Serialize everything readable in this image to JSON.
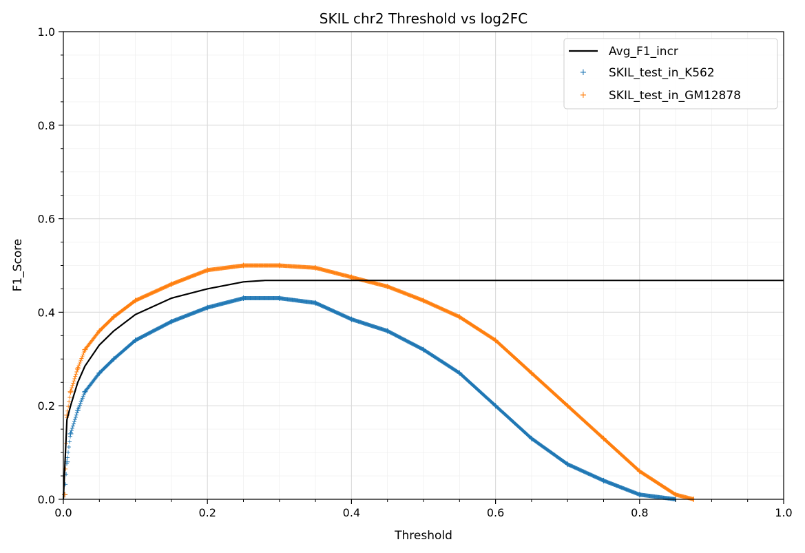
{
  "chart_data": {
    "type": "scatter",
    "title": "SKIL chr2 Threshold vs log2FC",
    "xlabel": "Threshold",
    "ylabel": "F1_Score",
    "xlim": [
      0,
      1.0
    ],
    "ylim": [
      0,
      1.0
    ],
    "xticks": [
      "0.0",
      "0.2",
      "0.4",
      "0.6",
      "0.8",
      "1.0"
    ],
    "yticks": [
      "0.0",
      "0.2",
      "0.4",
      "0.6",
      "0.8",
      "1.0"
    ],
    "grid": true,
    "minor_grid": true,
    "legend_position": "top-right",
    "series": [
      {
        "name": "Avg_F1_incr",
        "kind": "line",
        "color": "#000000",
        "x": [
          0.0,
          0.005,
          0.01,
          0.02,
          0.03,
          0.05,
          0.07,
          0.1,
          0.15,
          0.2,
          0.25,
          0.28,
          0.4,
          0.6,
          0.8,
          1.0
        ],
        "y": [
          0.0,
          0.17,
          0.2,
          0.25,
          0.285,
          0.33,
          0.36,
          0.395,
          0.43,
          0.45,
          0.465,
          0.468,
          0.468,
          0.468,
          0.468,
          0.468
        ]
      },
      {
        "name": "SKIL_test_in_K562",
        "kind": "scatter",
        "marker": "+",
        "color": "#1f77b4",
        "x": [
          0.002,
          0.005,
          0.01,
          0.02,
          0.03,
          0.05,
          0.07,
          0.1,
          0.15,
          0.2,
          0.25,
          0.3,
          0.35,
          0.4,
          0.45,
          0.5,
          0.55,
          0.6,
          0.65,
          0.7,
          0.75,
          0.8,
          0.85
        ],
        "y": [
          0.01,
          0.08,
          0.14,
          0.19,
          0.23,
          0.27,
          0.3,
          0.34,
          0.38,
          0.41,
          0.43,
          0.43,
          0.42,
          0.385,
          0.36,
          0.32,
          0.27,
          0.2,
          0.13,
          0.075,
          0.04,
          0.01,
          0.0
        ]
      },
      {
        "name": "SKIL_test_in_GM12878",
        "kind": "scatter",
        "marker": "+",
        "color": "#ff7f0e",
        "x": [
          0.002,
          0.005,
          0.01,
          0.02,
          0.03,
          0.05,
          0.07,
          0.1,
          0.15,
          0.2,
          0.25,
          0.3,
          0.35,
          0.4,
          0.45,
          0.5,
          0.55,
          0.6,
          0.65,
          0.7,
          0.75,
          0.8,
          0.85,
          0.875
        ],
        "y": [
          0.01,
          0.18,
          0.23,
          0.28,
          0.32,
          0.36,
          0.39,
          0.425,
          0.46,
          0.49,
          0.5,
          0.5,
          0.495,
          0.475,
          0.455,
          0.425,
          0.39,
          0.34,
          0.27,
          0.2,
          0.13,
          0.06,
          0.01,
          0.0
        ]
      }
    ]
  }
}
